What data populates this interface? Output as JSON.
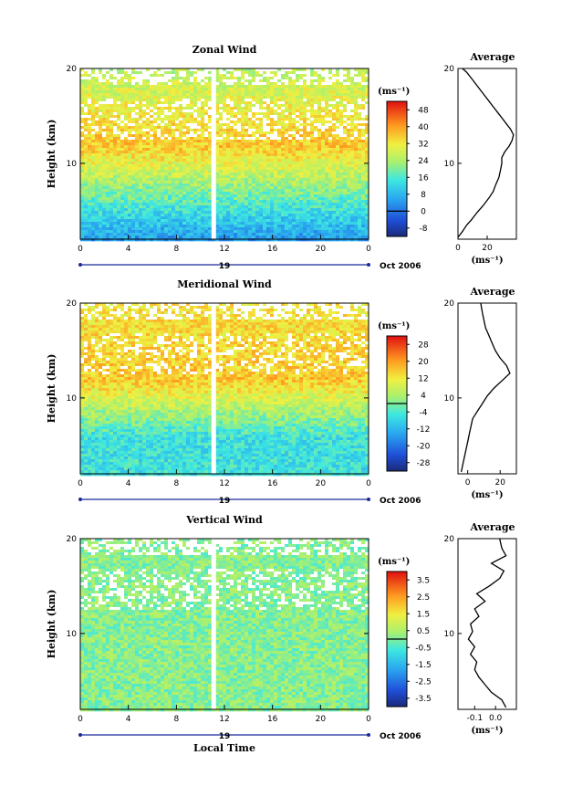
{
  "chart_data": [
    {
      "type": "heatmap",
      "title": "Zonal Wind",
      "ylabel": "Height (km)",
      "xlabel": "",
      "x_ticks": [
        "0",
        "4",
        "8",
        "12",
        "16",
        "20",
        "0"
      ],
      "y_ticks": [
        "20",
        "10"
      ],
      "day_label": "19",
      "date_label": "Oct 2006",
      "colorbar_unit": "(ms⁻¹)",
      "colorbar_ticks": [
        "48",
        "40",
        "32",
        "24",
        "16",
        "8",
        "0",
        "-8"
      ],
      "colorbar_range": [
        -12,
        52
      ],
      "xlim": [
        0,
        24
      ],
      "ylim": [
        2,
        20
      ],
      "profile": [
        [
          0,
          2.2
        ],
        [
          3,
          2.8
        ],
        [
          6,
          3.5
        ],
        [
          9,
          4.0
        ],
        [
          13,
          4.8
        ],
        [
          17,
          5.5
        ],
        [
          21,
          6.3
        ],
        [
          24,
          7.0
        ],
        [
          26,
          7.8
        ],
        [
          28,
          8.5
        ],
        [
          29,
          9.2
        ],
        [
          30,
          10.0
        ],
        [
          30,
          10.6
        ],
        [
          32,
          11.2
        ],
        [
          35,
          11.8
        ],
        [
          37,
          12.4
        ],
        [
          38,
          13.0
        ],
        [
          36,
          13.6
        ],
        [
          33,
          14.2
        ],
        [
          30,
          14.8
        ],
        [
          27,
          15.4
        ],
        [
          24,
          16.0
        ],
        [
          21,
          16.6
        ],
        [
          18,
          17.2
        ],
        [
          15,
          17.8
        ],
        [
          12,
          18.4
        ],
        [
          9,
          19.0
        ],
        [
          6,
          19.6
        ],
        [
          3,
          20.0
        ]
      ],
      "avg_title": "Average",
      "avg_x_ticks": [
        "0",
        "20"
      ],
      "avg_xlim": [
        0,
        40
      ],
      "avg_y_ticks": [
        "20",
        "10"
      ]
    },
    {
      "type": "heatmap",
      "title": "Meridional Wind",
      "ylabel": "Height (km)",
      "xlabel": "",
      "x_ticks": [
        "0",
        "4",
        "8",
        "12",
        "16",
        "20",
        "0"
      ],
      "y_ticks": [
        "20",
        "10"
      ],
      "day_label": "19",
      "date_label": "Oct 2006",
      "colorbar_unit": "(ms⁻¹)",
      "colorbar_ticks": [
        "28",
        "20",
        "12",
        "4",
        "-4",
        "-12",
        "-20",
        "-28"
      ],
      "colorbar_range": [
        -32,
        32
      ],
      "xlim": [
        0,
        24
      ],
      "ylim": [
        2,
        20
      ],
      "profile": [
        [
          -4,
          2.2
        ],
        [
          -3,
          3.0
        ],
        [
          -2,
          3.8
        ],
        [
          -1,
          4.6
        ],
        [
          0,
          5.4
        ],
        [
          1,
          6.2
        ],
        [
          2,
          7.0
        ],
        [
          3,
          7.8
        ],
        [
          6,
          8.6
        ],
        [
          9,
          9.4
        ],
        [
          12,
          10.2
        ],
        [
          16,
          11.0
        ],
        [
          21,
          11.8
        ],
        [
          26,
          12.6
        ],
        [
          24,
          13.4
        ],
        [
          20,
          14.2
        ],
        [
          17,
          15.0
        ],
        [
          15,
          15.8
        ],
        [
          13,
          16.6
        ],
        [
          11,
          17.4
        ],
        [
          10,
          18.2
        ],
        [
          9,
          19.0
        ],
        [
          8,
          20.0
        ]
      ],
      "avg_title": "Average",
      "avg_x_ticks": [
        "0",
        "20"
      ],
      "avg_xlim": [
        -6,
        30
      ],
      "avg_y_ticks": [
        "20",
        "10"
      ]
    },
    {
      "type": "heatmap",
      "title": "Vertical Wind",
      "ylabel": "Height (km)",
      "xlabel": "Local Time",
      "x_ticks": [
        "0",
        "4",
        "8",
        "12",
        "16",
        "20",
        "0"
      ],
      "y_ticks": [
        "20",
        "10"
      ],
      "day_label": "19",
      "date_label": "Oct 2006",
      "colorbar_unit": "(ms⁻¹)",
      "colorbar_ticks": [
        "3.5",
        "2.5",
        "1.5",
        "0.5",
        "-0.5",
        "-1.5",
        "-2.5",
        "-3.5"
      ],
      "colorbar_range": [
        -4,
        4
      ],
      "xlim": [
        0,
        24
      ],
      "ylim": [
        2,
        20
      ],
      "profile": [
        [
          0.05,
          2.2
        ],
        [
          0.03,
          3.0
        ],
        [
          -0.02,
          3.8
        ],
        [
          -0.05,
          4.6
        ],
        [
          -0.08,
          5.4
        ],
        [
          -0.1,
          6.2
        ],
        [
          -0.09,
          7.0
        ],
        [
          -0.12,
          7.8
        ],
        [
          -0.1,
          8.6
        ],
        [
          -0.13,
          9.4
        ],
        [
          -0.11,
          10.2
        ],
        [
          -0.12,
          11.0
        ],
        [
          -0.08,
          11.8
        ],
        [
          -0.1,
          12.6
        ],
        [
          -0.05,
          13.4
        ],
        [
          -0.09,
          14.2
        ],
        [
          -0.03,
          15.0
        ],
        [
          0.02,
          15.8
        ],
        [
          0.04,
          16.6
        ],
        [
          -0.02,
          17.4
        ],
        [
          0.05,
          18.2
        ],
        [
          0.03,
          19.0
        ],
        [
          0.02,
          20.0
        ]
      ],
      "avg_title": "Average",
      "avg_x_ticks": [
        "-0.1",
        "0.0"
      ],
      "avg_xlim": [
        -0.18,
        0.1
      ],
      "avg_y_ticks": [
        "20",
        "10"
      ]
    }
  ]
}
